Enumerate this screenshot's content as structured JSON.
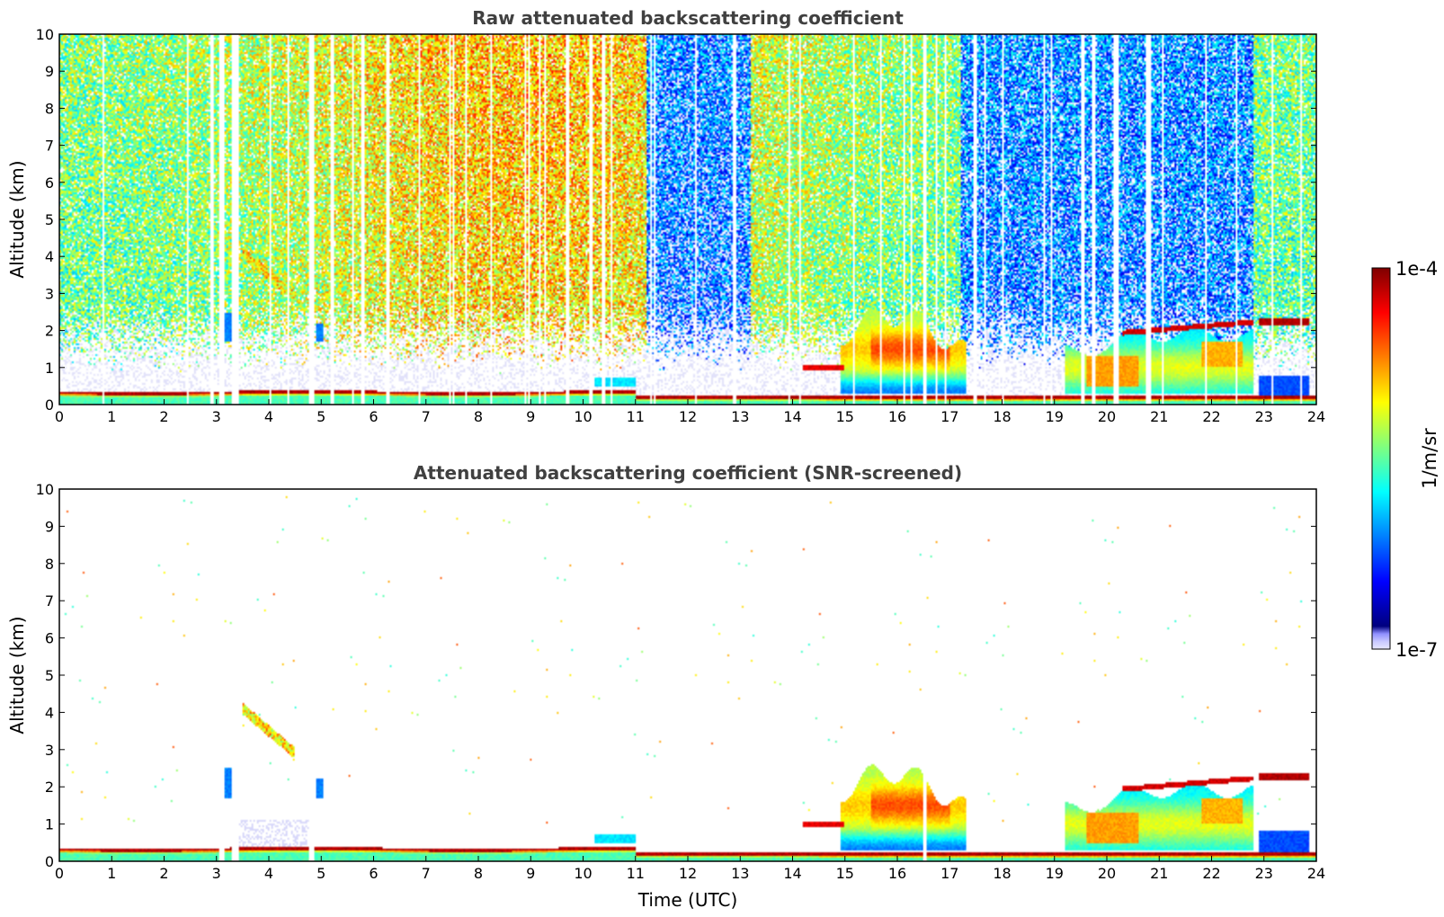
{
  "colors": {
    "jet": [
      "#00007f",
      "#0000ff",
      "#007fff",
      "#00ffff",
      "#7fff7f",
      "#ffff00",
      "#ff7f00",
      "#ff0000",
      "#7f0000"
    ],
    "frame": "#000000",
    "title": "#404040"
  },
  "colorbar": {
    "label": "1/m/sr",
    "top_label": "1e-4",
    "bottom_label": "1e-7",
    "scale": "log",
    "range": [
      1e-07,
      0.0001
    ]
  },
  "chart_data": [
    {
      "type": "heatmap",
      "title": "Raw attenuated backscattering coefficient",
      "xlabel": "",
      "ylabel": "Altitude (km)",
      "xlim": [
        0,
        24
      ],
      "ylim": [
        0,
        10
      ],
      "xticks": [
        "0",
        "1",
        "2",
        "3",
        "4",
        "5",
        "6",
        "7",
        "8",
        "9",
        "10",
        "11",
        "12",
        "13",
        "14",
        "15",
        "16",
        "17",
        "18",
        "19",
        "20",
        "21",
        "22",
        "23",
        "24"
      ],
      "yticks": [
        "0",
        "1",
        "2",
        "3",
        "4",
        "5",
        "6",
        "7",
        "8",
        "9",
        "10"
      ],
      "grid": false,
      "features": {
        "surface_layer_top_km": 0.3,
        "low_cloud_15_17_h_km": [
          0.4,
          2.5
        ],
        "cloud_19_22_h_km": [
          0.5,
          2.0
        ],
        "cloud_22_24_h_top_km": 2.4,
        "elevated_aerosol_3_5_4_5_h_km": [
          2.8,
          4.2
        ],
        "noise_above_km": 1.5
      }
    },
    {
      "type": "heatmap",
      "title": "Attenuated backscattering coefficient (SNR-screened)",
      "xlabel": "Time (UTC)",
      "ylabel": "Altitude (km)",
      "xlim": [
        0,
        24
      ],
      "ylim": [
        0,
        10
      ],
      "xticks": [
        "0",
        "1",
        "2",
        "3",
        "4",
        "5",
        "6",
        "7",
        "8",
        "9",
        "10",
        "11",
        "12",
        "13",
        "14",
        "15",
        "16",
        "17",
        "18",
        "19",
        "20",
        "21",
        "22",
        "23",
        "24"
      ],
      "yticks": [
        "0",
        "1",
        "2",
        "3",
        "4",
        "5",
        "6",
        "7",
        "8",
        "9",
        "10"
      ],
      "grid": false,
      "features": {
        "surface_layer_top_km": 0.3,
        "low_cloud_15_17_h_km": [
          0.4,
          2.5
        ],
        "cloud_19_22_h_km": [
          0.5,
          2.0
        ],
        "cloud_22_24_h_top_km": 2.4,
        "elevated_aerosol_3_5_4_5_h_km": [
          2.8,
          4.2
        ]
      }
    }
  ]
}
